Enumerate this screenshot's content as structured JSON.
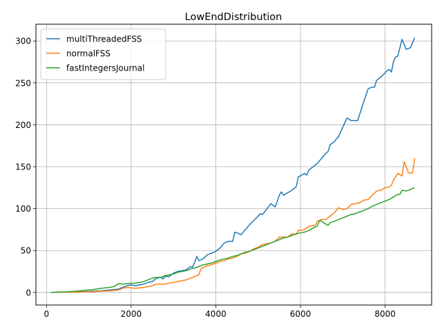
{
  "chart_data": {
    "type": "line",
    "title": "LowEndDistribution",
    "xlabel": "",
    "ylabel": "",
    "xlim": [
      -250,
      9100
    ],
    "ylim": [
      -15,
      320
    ],
    "xticks": [
      0,
      2000,
      4000,
      6000,
      8000
    ],
    "yticks": [
      0,
      50,
      100,
      150,
      200,
      250,
      300
    ],
    "grid": true,
    "legend_position": "upper-left",
    "series": [
      {
        "name": "multiThreadedFSS",
        "color": "#1f77b4",
        "points": [
          [
            100,
            0
          ],
          [
            300,
            0.3
          ],
          [
            500,
            0.5
          ],
          [
            700,
            0.8
          ],
          [
            900,
            1
          ],
          [
            1100,
            1.5
          ],
          [
            1300,
            2
          ],
          [
            1500,
            3
          ],
          [
            1700,
            4
          ],
          [
            1800,
            6
          ],
          [
            1900,
            8
          ],
          [
            2000,
            9
          ],
          [
            2100,
            8
          ],
          [
            2200,
            9
          ],
          [
            2300,
            10
          ],
          [
            2400,
            12
          ],
          [
            2500,
            13
          ],
          [
            2600,
            17
          ],
          [
            2700,
            18
          ],
          [
            2750,
            16
          ],
          [
            2800,
            19
          ],
          [
            2900,
            19
          ],
          [
            3000,
            23
          ],
          [
            3100,
            25
          ],
          [
            3200,
            26
          ],
          [
            3300,
            27
          ],
          [
            3400,
            31
          ],
          [
            3450,
            30
          ],
          [
            3500,
            36
          ],
          [
            3550,
            43
          ],
          [
            3600,
            38
          ],
          [
            3700,
            40
          ],
          [
            3800,
            45
          ],
          [
            3900,
            47
          ],
          [
            4000,
            49
          ],
          [
            4100,
            53
          ],
          [
            4200,
            59
          ],
          [
            4300,
            61
          ],
          [
            4400,
            61
          ],
          [
            4450,
            72
          ],
          [
            4500,
            71
          ],
          [
            4600,
            69
          ],
          [
            4700,
            75
          ],
          [
            4800,
            81
          ],
          [
            4900,
            86
          ],
          [
            5000,
            91
          ],
          [
            5050,
            94
          ],
          [
            5100,
            93
          ],
          [
            5200,
            99
          ],
          [
            5300,
            106
          ],
          [
            5400,
            102
          ],
          [
            5450,
            108
          ],
          [
            5500,
            116
          ],
          [
            5550,
            120
          ],
          [
            5600,
            116
          ],
          [
            5700,
            119
          ],
          [
            5800,
            122
          ],
          [
            5900,
            126
          ],
          [
            5950,
            138
          ],
          [
            6000,
            139
          ],
          [
            6100,
            142
          ],
          [
            6150,
            140
          ],
          [
            6200,
            146
          ],
          [
            6300,
            150
          ],
          [
            6400,
            154
          ],
          [
            6500,
            160
          ],
          [
            6600,
            166
          ],
          [
            6650,
            168
          ],
          [
            6700,
            176
          ],
          [
            6800,
            180
          ],
          [
            6900,
            186
          ],
          [
            7000,
            197
          ],
          [
            7100,
            208
          ],
          [
            7200,
            205
          ],
          [
            7300,
            205
          ],
          [
            7350,
            205
          ],
          [
            7500,
            228
          ],
          [
            7600,
            243
          ],
          [
            7650,
            244
          ],
          [
            7700,
            245
          ],
          [
            7750,
            245
          ],
          [
            7800,
            253
          ],
          [
            7900,
            257
          ],
          [
            8000,
            262
          ],
          [
            8050,
            265
          ],
          [
            8100,
            266
          ],
          [
            8150,
            263
          ],
          [
            8200,
            276
          ],
          [
            8250,
            281
          ],
          [
            8300,
            282
          ],
          [
            8400,
            302
          ],
          [
            8500,
            290
          ],
          [
            8600,
            292
          ],
          [
            8700,
            304
          ]
        ]
      },
      {
        "name": "normalFSS",
        "color": "#ff7f0e",
        "points": [
          [
            100,
            0
          ],
          [
            300,
            0.2
          ],
          [
            500,
            0.3
          ],
          [
            700,
            0.5
          ],
          [
            900,
            0.7
          ],
          [
            1100,
            1
          ],
          [
            1300,
            1.5
          ],
          [
            1500,
            2
          ],
          [
            1700,
            3
          ],
          [
            1800,
            5
          ],
          [
            1900,
            6
          ],
          [
            2000,
            5.5
          ],
          [
            2100,
            5
          ],
          [
            2200,
            5.5
          ],
          [
            2300,
            6
          ],
          [
            2400,
            7
          ],
          [
            2500,
            8
          ],
          [
            2600,
            10
          ],
          [
            2700,
            10
          ],
          [
            2800,
            10
          ],
          [
            2900,
            11
          ],
          [
            3000,
            12
          ],
          [
            3100,
            13
          ],
          [
            3200,
            14
          ],
          [
            3300,
            15
          ],
          [
            3400,
            17
          ],
          [
            3500,
            19
          ],
          [
            3600,
            21
          ],
          [
            3650,
            28
          ],
          [
            3700,
            30
          ],
          [
            3800,
            32
          ],
          [
            3900,
            33
          ],
          [
            4000,
            35
          ],
          [
            4100,
            37
          ],
          [
            4200,
            38
          ],
          [
            4300,
            40
          ],
          [
            4400,
            41
          ],
          [
            4500,
            43
          ],
          [
            4600,
            46
          ],
          [
            4700,
            47
          ],
          [
            4800,
            49
          ],
          [
            4900,
            52
          ],
          [
            5000,
            54
          ],
          [
            5100,
            57
          ],
          [
            5200,
            58
          ],
          [
            5300,
            59
          ],
          [
            5400,
            61
          ],
          [
            5500,
            66
          ],
          [
            5600,
            66
          ],
          [
            5700,
            66
          ],
          [
            5800,
            70
          ],
          [
            5900,
            69
          ],
          [
            5950,
            74
          ],
          [
            6000,
            74
          ],
          [
            6100,
            75
          ],
          [
            6200,
            79
          ],
          [
            6300,
            80
          ],
          [
            6350,
            80
          ],
          [
            6400,
            85
          ],
          [
            6500,
            87
          ],
          [
            6600,
            87
          ],
          [
            6700,
            91
          ],
          [
            6800,
            95
          ],
          [
            6900,
            101
          ],
          [
            7000,
            99
          ],
          [
            7100,
            100
          ],
          [
            7200,
            105
          ],
          [
            7300,
            106
          ],
          [
            7400,
            107
          ],
          [
            7500,
            110
          ],
          [
            7600,
            111
          ],
          [
            7700,
            116
          ],
          [
            7800,
            121
          ],
          [
            7900,
            122
          ],
          [
            8000,
            125
          ],
          [
            8100,
            126
          ],
          [
            8150,
            128
          ],
          [
            8200,
            134
          ],
          [
            8300,
            142
          ],
          [
            8400,
            139
          ],
          [
            8450,
            156
          ],
          [
            8550,
            143
          ],
          [
            8600,
            142
          ],
          [
            8650,
            143
          ],
          [
            8700,
            160
          ]
        ]
      },
      {
        "name": "fastIntegersJournal",
        "color": "#2ca02c",
        "points": [
          [
            100,
            0
          ],
          [
            300,
            0.5
          ],
          [
            500,
            0.8
          ],
          [
            700,
            1.5
          ],
          [
            900,
            2.5
          ],
          [
            1100,
            3.5
          ],
          [
            1300,
            5
          ],
          [
            1500,
            6
          ],
          [
            1600,
            7
          ],
          [
            1700,
            10.5
          ],
          [
            1800,
            10
          ],
          [
            1900,
            10.5
          ],
          [
            2000,
            11
          ],
          [
            2100,
            11
          ],
          [
            2200,
            12
          ],
          [
            2300,
            13
          ],
          [
            2400,
            15
          ],
          [
            2500,
            17
          ],
          [
            2600,
            18
          ],
          [
            2700,
            18
          ],
          [
            2800,
            20
          ],
          [
            2900,
            21
          ],
          [
            3000,
            22
          ],
          [
            3100,
            24
          ],
          [
            3200,
            25
          ],
          [
            3300,
            26
          ],
          [
            3400,
            28
          ],
          [
            3500,
            29
          ],
          [
            3600,
            31
          ],
          [
            3700,
            33
          ],
          [
            3800,
            34
          ],
          [
            3900,
            35
          ],
          [
            4000,
            37
          ],
          [
            4100,
            39
          ],
          [
            4200,
            40
          ],
          [
            4300,
            41
          ],
          [
            4400,
            43
          ],
          [
            4500,
            44
          ],
          [
            4600,
            46
          ],
          [
            4700,
            48
          ],
          [
            4800,
            49
          ],
          [
            4900,
            51
          ],
          [
            5000,
            53
          ],
          [
            5100,
            55
          ],
          [
            5200,
            57
          ],
          [
            5300,
            59
          ],
          [
            5400,
            61
          ],
          [
            5500,
            63
          ],
          [
            5600,
            65
          ],
          [
            5700,
            66
          ],
          [
            5800,
            68
          ],
          [
            5900,
            70
          ],
          [
            6000,
            71
          ],
          [
            6100,
            72
          ],
          [
            6200,
            74
          ],
          [
            6300,
            77
          ],
          [
            6400,
            79
          ],
          [
            6450,
            86
          ],
          [
            6500,
            85
          ],
          [
            6550,
            83
          ],
          [
            6650,
            80
          ],
          [
            6700,
            83
          ],
          [
            6800,
            85
          ],
          [
            6900,
            87
          ],
          [
            7000,
            89
          ],
          [
            7100,
            91
          ],
          [
            7200,
            93
          ],
          [
            7300,
            94
          ],
          [
            7400,
            96
          ],
          [
            7500,
            98
          ],
          [
            7600,
            100
          ],
          [
            7700,
            103
          ],
          [
            7800,
            105
          ],
          [
            7900,
            107
          ],
          [
            8000,
            109
          ],
          [
            8100,
            111
          ],
          [
            8200,
            114
          ],
          [
            8300,
            117
          ],
          [
            8350,
            117
          ],
          [
            8400,
            122
          ],
          [
            8500,
            121
          ],
          [
            8600,
            123
          ],
          [
            8700,
            125
          ]
        ]
      }
    ]
  }
}
